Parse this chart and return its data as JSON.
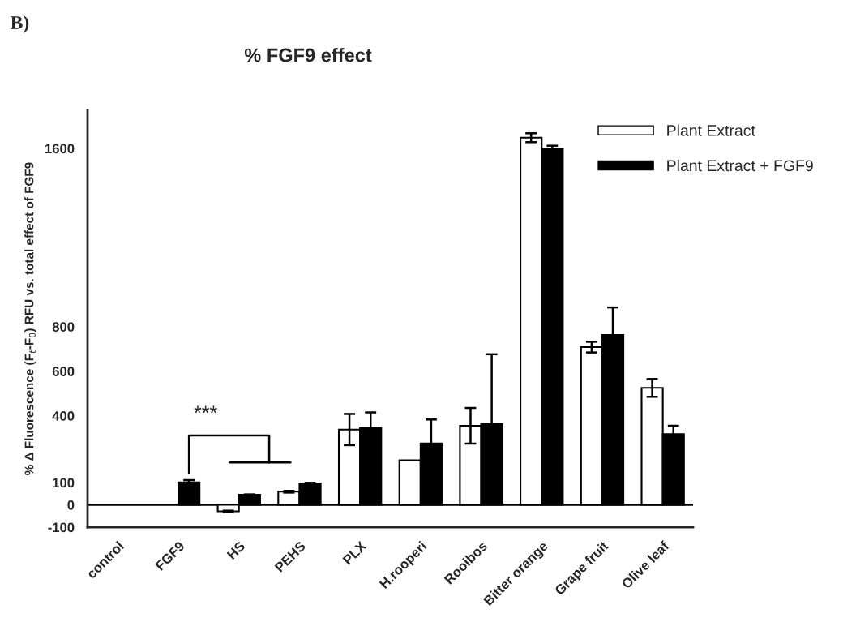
{
  "chart_data": {
    "type": "bar",
    "title": "% FGF9 effect",
    "annotations": [
      "B)",
      "***"
    ],
    "ylabel": "% Δ Fluorescence (F$_{t}$-F$_{0}$) RFU vs. total effect of FGF9",
    "categories": [
      "control",
      "FGF9",
      "HS",
      "PEHS",
      "PLX",
      "H.rooperi",
      "Rooibos",
      "Bitter orange",
      "Grape fruit",
      "Olive leaf"
    ],
    "series": [
      {
        "name": "Plant Extract",
        "color": "#ffffff",
        "values": [
          null,
          null,
          -29,
          59,
          338,
          200,
          355,
          1648,
          708,
          525
        ],
        "errors": [
          null,
          null,
          3,
          4,
          70,
          null,
          80,
          20,
          24,
          40
        ]
      },
      {
        "name": "Plant Extract + FGF9",
        "color": "#000000",
        "values": [
          null,
          101,
          45,
          96,
          345,
          276,
          362,
          1597,
          763,
          318
        ],
        "errors": [
          null,
          10,
          2,
          3,
          70,
          107,
          314,
          15,
          123,
          37
        ]
      }
    ],
    "ylim": [
      -100,
      1771
    ],
    "yticks": [
      -100,
      0,
      100,
      400,
      600,
      800,
      1600
    ],
    "ref_lines": [
      {
        "axis": "y",
        "value": 0,
        "color": "#000000"
      }
    ],
    "legend": "top right"
  }
}
